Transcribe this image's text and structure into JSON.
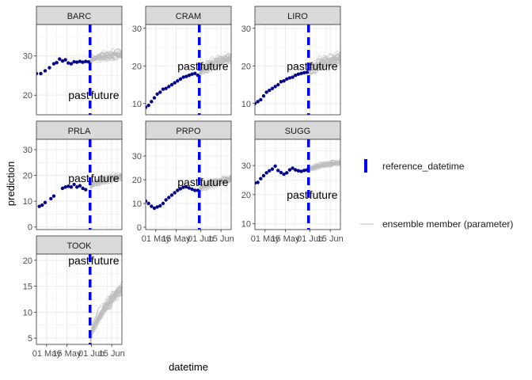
{
  "chart_data": {
    "type": "line",
    "title": "",
    "xlabel": "datetime",
    "ylabel": "prediction",
    "x_ticks": [
      "01 May",
      "15 May",
      "01 Jun",
      "15 Jun"
    ],
    "x_range_days": [
      -37,
      22
    ],
    "reference_datetime_day": 0,
    "annotation_left": "past",
    "annotation_right": "future",
    "colors": {
      "observed": "#00008B",
      "ensemble": "#BDBDBD",
      "reference": "#0000FF",
      "strip_bg": "#D9D9D9",
      "grid": "#EBEBEB"
    },
    "legend": {
      "reference_label": "reference_datetime",
      "ensemble_label": "ensemble member (parameter)"
    },
    "panels": [
      {
        "site": "BARC",
        "ylim": [
          15,
          38
        ],
        "yticks": [
          20,
          30
        ],
        "ann_y": 20,
        "show_x_ticks": false,
        "observed": [
          [
            -37,
            25.5
          ],
          [
            -34,
            25.5
          ],
          [
            -31,
            26.2
          ],
          [
            -28,
            27
          ],
          [
            -25,
            28
          ],
          [
            -23,
            28.3
          ],
          [
            -21,
            29.2
          ],
          [
            -19,
            28.7
          ],
          [
            -17,
            29
          ],
          [
            -15,
            28.2
          ],
          [
            -13,
            28
          ],
          [
            -11,
            28.5
          ],
          [
            -9,
            28.4
          ],
          [
            -7,
            28.6
          ],
          [
            -5,
            28.4
          ],
          [
            -3,
            28.6
          ],
          [
            -1,
            28.5
          ]
        ],
        "ensemble": {
          "start": 28.7,
          "end": 30.5,
          "spread": 3.0
        }
      },
      {
        "site": "CRAM",
        "ylim": [
          7,
          31
        ],
        "yticks": [
          10,
          20,
          30
        ],
        "ann_y": 20,
        "show_x_ticks": false,
        "observed": [
          [
            -37,
            9
          ],
          [
            -35,
            9.5
          ],
          [
            -33,
            10.5
          ],
          [
            -31,
            11.5
          ],
          [
            -29,
            12.5
          ],
          [
            -27,
            13
          ],
          [
            -25,
            13.8
          ],
          [
            -23,
            14
          ],
          [
            -21,
            14.5
          ],
          [
            -19,
            15
          ],
          [
            -17,
            15.5
          ],
          [
            -15,
            16
          ],
          [
            -13,
            16.5
          ],
          [
            -11,
            17
          ],
          [
            -9,
            17.2
          ],
          [
            -7,
            17.5
          ],
          [
            -5,
            17.8
          ],
          [
            -3,
            18
          ],
          [
            -1,
            17.5
          ]
        ],
        "ensemble": {
          "start": 18,
          "end": 22,
          "spread": 4.0
        }
      },
      {
        "site": "LIRO",
        "ylim": [
          7,
          31
        ],
        "yticks": [
          10,
          20,
          30
        ],
        "ann_y": 20,
        "show_x_ticks": false,
        "observed": [
          [
            -37,
            10
          ],
          [
            -35,
            10.5
          ],
          [
            -33,
            11
          ],
          [
            -31,
            12
          ],
          [
            -29,
            13
          ],
          [
            -27,
            13.5
          ],
          [
            -25,
            14
          ],
          [
            -23,
            14.5
          ],
          [
            -21,
            15
          ],
          [
            -19,
            15.8
          ],
          [
            -17,
            16
          ],
          [
            -15,
            16.5
          ],
          [
            -13,
            16.8
          ],
          [
            -11,
            17
          ],
          [
            -9,
            17.5
          ],
          [
            -7,
            17.8
          ],
          [
            -5,
            18
          ],
          [
            -3,
            18.2
          ],
          [
            -1,
            18.3
          ]
        ],
        "ensemble": {
          "start": 18.5,
          "end": 22,
          "spread": 4.5
        }
      },
      {
        "site": "PRLA",
        "ylim": [
          -1,
          34
        ],
        "yticks": [
          0,
          10,
          20,
          30
        ],
        "ann_y": 19,
        "show_x_ticks": false,
        "observed": [
          [
            -35,
            8
          ],
          [
            -33,
            8.5
          ],
          [
            -31,
            9.5
          ],
          [
            -27,
            11
          ],
          [
            -25,
            12
          ],
          [
            -19,
            15
          ],
          [
            -17,
            15.5
          ],
          [
            -15,
            15.8
          ],
          [
            -13,
            15.5
          ],
          [
            -11,
            16.5
          ],
          [
            -9,
            15.5
          ],
          [
            -7,
            16
          ],
          [
            -5,
            15
          ],
          [
            -3,
            14.5
          ]
        ],
        "ensemble": {
          "start": 15.5,
          "end": 19.5,
          "spread": 4.0
        }
      },
      {
        "site": "PRPO",
        "ylim": [
          -1,
          37
        ],
        "yticks": [
          0,
          10,
          20,
          30
        ],
        "ann_y": 19,
        "show_x_ticks": true,
        "observed": [
          [
            -37,
            11
          ],
          [
            -35,
            10
          ],
          [
            -33,
            8.8
          ],
          [
            -31,
            8
          ],
          [
            -29,
            8.5
          ],
          [
            -27,
            9
          ],
          [
            -25,
            10
          ],
          [
            -23,
            11.5
          ],
          [
            -21,
            12.5
          ],
          [
            -19,
            13.5
          ],
          [
            -17,
            14.5
          ],
          [
            -15,
            15.5
          ],
          [
            -13,
            16.2
          ],
          [
            -11,
            16.8
          ],
          [
            -9,
            17
          ],
          [
            -7,
            16.5
          ],
          [
            -5,
            16
          ],
          [
            -3,
            15.5
          ],
          [
            -1,
            15.5
          ]
        ],
        "ensemble": {
          "start": 16,
          "end": 20.5,
          "spread": 4.5
        }
      },
      {
        "site": "SUGG",
        "ylim": [
          8,
          39
        ],
        "yticks": [
          10,
          20,
          30
        ],
        "ann_y": 20,
        "show_x_ticks": true,
        "observed": [
          [
            -37,
            24
          ],
          [
            -35,
            24.2
          ],
          [
            -33,
            25.5
          ],
          [
            -31,
            26.5
          ],
          [
            -29,
            27.5
          ],
          [
            -27,
            28.2
          ],
          [
            -25,
            28.8
          ],
          [
            -23,
            29.8
          ],
          [
            -21,
            28.3
          ],
          [
            -19,
            27.6
          ],
          [
            -17,
            27
          ],
          [
            -15,
            27.5
          ],
          [
            -13,
            28.5
          ],
          [
            -11,
            29.1
          ],
          [
            -9,
            28.5
          ],
          [
            -7,
            28.2
          ],
          [
            -5,
            28
          ],
          [
            -3,
            28.3
          ],
          [
            -1,
            28.5
          ]
        ],
        "ensemble": {
          "start": 28.5,
          "end": 31.2,
          "spread": 2.6
        }
      },
      {
        "site": "TOOK",
        "ylim": [
          3.8,
          21.2
        ],
        "yticks": [
          5,
          10,
          15,
          20
        ],
        "ann_y": 20,
        "show_x_ticks": true,
        "observed": [],
        "ensemble": {
          "start": 4.5,
          "end": 14.5,
          "spread": 3.2
        }
      }
    ]
  }
}
